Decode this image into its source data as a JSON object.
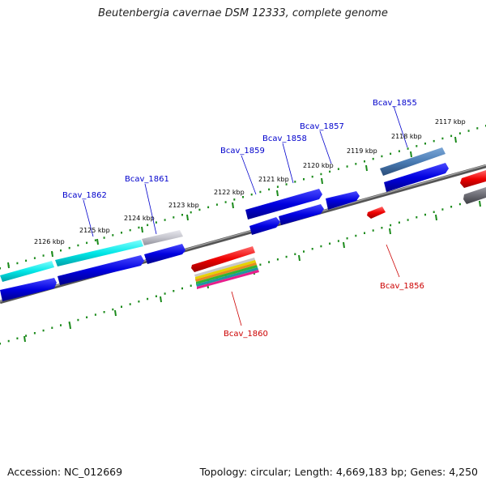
{
  "title": "Beutenbergia cavernae DSM 12333, complete genome",
  "footer": {
    "accession": "Accession: NC_012669",
    "topology": "Topology: circular; Length: 4,669,183 bp; Genes: 4,250"
  },
  "ticks": [
    "2117 kbp",
    "2118 kbp",
    "2119 kbp",
    "2120 kbp",
    "2121 kbp",
    "2122 kbp",
    "2123 kbp",
    "2124 kbp",
    "2125 kbp",
    "2126 kbp"
  ],
  "gene_labels_forward": [
    "Bcav_1855",
    "Bcav_1857",
    "Bcav_1858",
    "Bcav_1859",
    "Bcav_1861",
    "Bcav_1862"
  ],
  "gene_labels_reverse": [
    "Bcav_1856",
    "Bcav_1860"
  ],
  "colors": {
    "forward_label": "#0000cc",
    "reverse_label": "#cc0000",
    "backbone": "#777777",
    "tick": "#1a8a1a"
  }
}
